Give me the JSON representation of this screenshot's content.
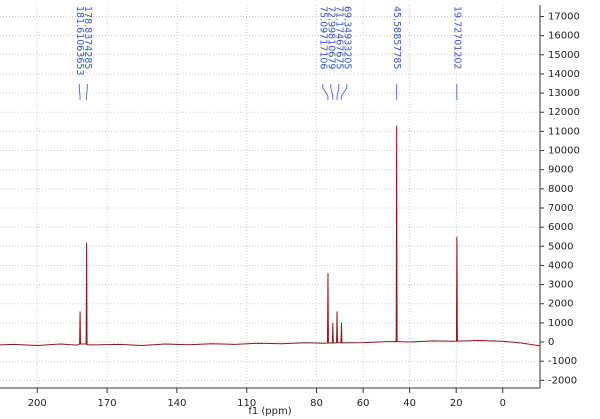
{
  "chart_data": {
    "type": "line",
    "x_label": "f1 (ppm)",
    "peak_labels": [
      181.61063653,
      178.8374285,
      75.09717106,
      72.99810679,
      71.17467675,
      69.34933205,
      45.58857785,
      19.72701202
    ],
    "series": [
      {
        "color": "#8b1a1a",
        "x": [
          216,
          210,
          200,
          190,
          183,
          181.8,
          181.6,
          181.4,
          179.0,
          178.8,
          178.6,
          175,
          165,
          155,
          145,
          135,
          125,
          115,
          105,
          95,
          85,
          77,
          75.3,
          75.1,
          74.9,
          73.2,
          73.0,
          72.8,
          71.4,
          71.2,
          71.0,
          69.5,
          69.3,
          69.1,
          60,
          50,
          45.8,
          45.6,
          45.4,
          40,
          30,
          21,
          19.9,
          19.7,
          19.5,
          10,
          0,
          -8,
          -16
        ],
        "values": [
          -150,
          -120,
          -180,
          -100,
          -160,
          -100,
          1600,
          -100,
          -100,
          5200,
          -150,
          -150,
          -120,
          -180,
          -100,
          -140,
          -90,
          -120,
          -60,
          -90,
          -40,
          -60,
          -50,
          3600,
          -50,
          -50,
          1000,
          -50,
          -40,
          1600,
          -40,
          -40,
          1000,
          -40,
          -30,
          20,
          20,
          11300,
          20,
          0,
          60,
          40,
          50,
          5500,
          50,
          80,
          40,
          -50,
          -200
        ]
      }
    ],
    "xlim": [
      216,
      -16
    ],
    "xticks": [
      200,
      170,
      140,
      110,
      80,
      60,
      40,
      20,
      0
    ],
    "ylim": [
      -2400,
      17600
    ],
    "yticks": [
      -2000,
      -1000,
      0,
      1000,
      2000,
      3000,
      4000,
      5000,
      6000,
      7000,
      8000,
      9000,
      10000,
      11000,
      12000,
      13000,
      14000,
      15000,
      16000,
      17000
    ],
    "grid": true,
    "label_color": "#3a55d0"
  }
}
